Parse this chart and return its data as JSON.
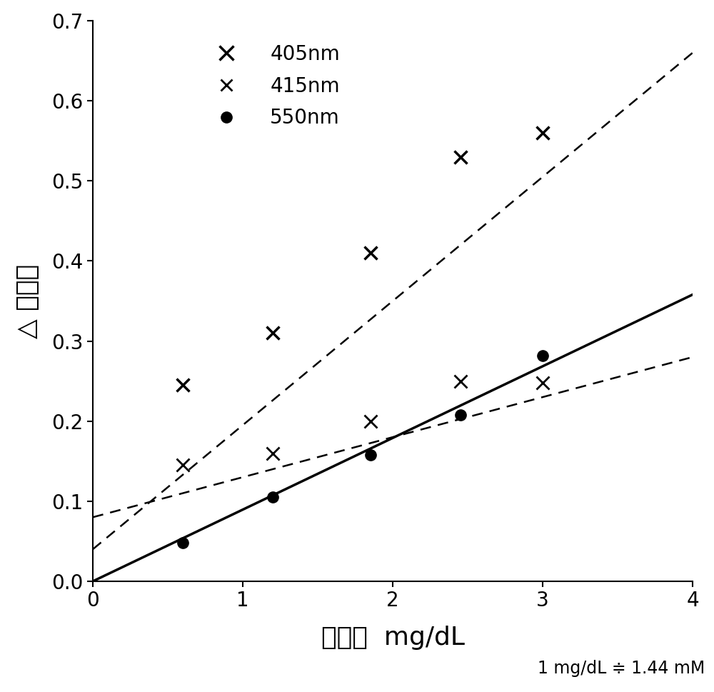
{
  "series_405nm": {
    "x": [
      0.6,
      1.2,
      1.85,
      2.45,
      3.0
    ],
    "y": [
      0.245,
      0.31,
      0.41,
      0.53,
      0.56
    ],
    "label": "405nm",
    "marker_size": 13,
    "linewidth": 1.8,
    "markeredgewidth": 2.5
  },
  "series_415nm": {
    "x": [
      0.6,
      1.2,
      1.85,
      2.45,
      3.0
    ],
    "y": [
      0.145,
      0.16,
      0.2,
      0.25,
      0.248
    ],
    "label": "415nm",
    "marker_size": 13,
    "linewidth": 1.8,
    "markeredgewidth": 2.0
  },
  "series_550nm": {
    "x": [
      0.6,
      1.2,
      1.85,
      2.45,
      3.0
    ],
    "y": [
      0.048,
      0.105,
      0.158,
      0.208,
      0.282
    ],
    "label": "550nm",
    "marker_size": 11,
    "linewidth": 2.5
  },
  "line_405nm": {
    "x0": 0.0,
    "y0": 0.04,
    "x1": 4.0,
    "y1": 0.66
  },
  "line_415nm": {
    "x0": 0.0,
    "y0": 0.08,
    "x1": 4.0,
    "y1": 0.28
  },
  "line_550nm_slope": 0.0895,
  "xlabel": "锂浓度  mg/dL",
  "ylabel": "△ 吸光度",
  "annotation": "1 mg/dL ≑ 1.44 mM",
  "xlim": [
    0,
    4
  ],
  "ylim": [
    0,
    0.7
  ],
  "xticks": [
    0,
    1,
    2,
    3,
    4
  ],
  "yticks": [
    0,
    0.1,
    0.2,
    0.3,
    0.4,
    0.5,
    0.6,
    0.7
  ],
  "background_color": "#ffffff",
  "line_color": "#000000",
  "figsize": [
    10.0,
    9.69
  ],
  "dpi": 100
}
